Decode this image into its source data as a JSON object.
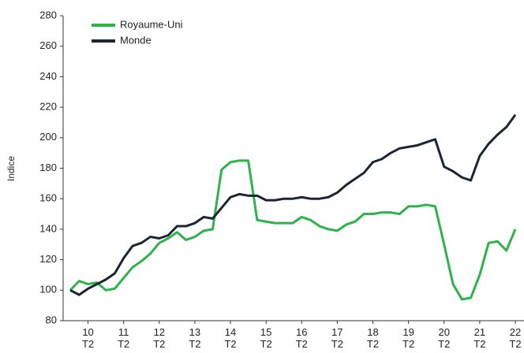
{
  "chart_data": {
    "type": "line",
    "y_label": "Indice",
    "categories": [
      null,
      null,
      "10 T2",
      null,
      null,
      null,
      "11 T2",
      null,
      null,
      null,
      "12 T2",
      null,
      null,
      null,
      "13 T2",
      null,
      null,
      null,
      "14 T2",
      null,
      null,
      null,
      "15 T2",
      null,
      null,
      null,
      "16 T2",
      null,
      null,
      null,
      "17 T2",
      null,
      null,
      null,
      "18 T2",
      null,
      null,
      null,
      "19 T2",
      null,
      null,
      null,
      "20 T2",
      null,
      null,
      null,
      "21 T2",
      null,
      null,
      null,
      "22 T2"
    ],
    "series": [
      {
        "name": "Royaume-Uni",
        "color": "#2db34a",
        "values": [
          100,
          106,
          104,
          105,
          100,
          101,
          108,
          115,
          119,
          124,
          131,
          134,
          138,
          133,
          135,
          139,
          140,
          179,
          184,
          185,
          185,
          146,
          145,
          144,
          144,
          144,
          148,
          146,
          142,
          140,
          139,
          143,
          145,
          150,
          150,
          151,
          151,
          150,
          155,
          155,
          156,
          155,
          130,
          104,
          94,
          95,
          110,
          131,
          132,
          126,
          140
        ]
      },
      {
        "name": "Monde",
        "color": "#1c2533",
        "values": [
          100,
          97,
          101,
          104,
          107,
          111,
          121,
          129,
          131,
          135,
          134,
          136,
          142,
          142,
          144,
          148,
          147,
          154,
          161,
          163,
          162,
          162,
          159,
          159,
          160,
          160,
          161,
          160,
          160,
          161,
          164,
          169,
          173,
          177,
          184,
          186,
          190,
          193,
          194,
          195,
          197,
          199,
          181,
          178,
          174,
          172,
          188,
          196,
          202,
          207,
          215
        ]
      }
    ],
    "ylim": [
      80,
      280
    ],
    "yticks": [
      80,
      100,
      120,
      140,
      160,
      180,
      200,
      220,
      240,
      260,
      280
    ],
    "legend": "upper-left"
  }
}
